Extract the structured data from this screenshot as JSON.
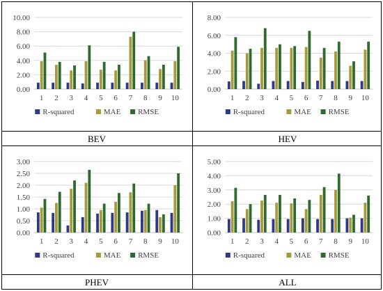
{
  "colors": {
    "r_squared": "#2E3A87",
    "mae": "#A89A3A",
    "rmse": "#2F6B2F"
  },
  "chart_data": [
    {
      "type": "bar",
      "title": "BEV",
      "categories": [
        "1",
        "2",
        "3",
        "4",
        "5",
        "6",
        "7",
        "8",
        "9",
        "10"
      ],
      "ylim": [
        0,
        10
      ],
      "yticks": [
        "0.00",
        "2.00",
        "4.00",
        "6.00",
        "8.00",
        "10.00"
      ],
      "tick_values": [
        0,
        2,
        4,
        6,
        8,
        10
      ],
      "series": [
        {
          "name": "R-squared",
          "values": [
            0.9,
            0.9,
            0.9,
            0.8,
            0.9,
            0.9,
            0.9,
            0.9,
            0.9,
            0.9
          ]
        },
        {
          "name": "MAE",
          "values": [
            3.9,
            3.4,
            2.6,
            3.9,
            2.7,
            2.6,
            7.3,
            4.0,
            2.8,
            3.9
          ]
        },
        {
          "name": "RMSE",
          "values": [
            5.1,
            3.8,
            3.3,
            6.1,
            3.8,
            3.4,
            8.0,
            4.6,
            3.4,
            5.9
          ]
        }
      ]
    },
    {
      "type": "bar",
      "title": "HEV",
      "categories": [
        "1",
        "2",
        "3",
        "4",
        "5",
        "6",
        "7",
        "8",
        "9",
        "10"
      ],
      "ylim": [
        0,
        8
      ],
      "yticks": [
        "0.00",
        "2.00",
        "4.00",
        "6.00",
        "8.00"
      ],
      "tick_values": [
        0,
        2,
        4,
        6,
        8
      ],
      "series": [
        {
          "name": "R-squared",
          "values": [
            0.85,
            0.9,
            0.6,
            0.9,
            0.9,
            0.8,
            0.95,
            0.9,
            0.9,
            0.9
          ]
        },
        {
          "name": "MAE",
          "values": [
            4.3,
            4.0,
            4.6,
            4.6,
            4.6,
            4.7,
            3.5,
            4.2,
            2.6,
            4.4
          ]
        },
        {
          "name": "RMSE",
          "values": [
            5.8,
            4.5,
            6.8,
            5.0,
            4.8,
            6.5,
            4.6,
            5.3,
            3.1,
            5.3
          ]
        }
      ]
    },
    {
      "type": "bar",
      "title": "PHEV",
      "categories": [
        "1",
        "2",
        "3",
        "4",
        "5",
        "6",
        "7",
        "8",
        "9",
        "10"
      ],
      "ylim": [
        0,
        3
      ],
      "yticks": [
        "0.00",
        "0.50",
        "1.00",
        "1.50",
        "2.00",
        "2.50",
        "3.00"
      ],
      "tick_values": [
        0,
        0.5,
        1,
        1.5,
        2,
        2.5,
        3
      ],
      "series": [
        {
          "name": "R-squared",
          "values": [
            0.85,
            0.83,
            0.3,
            0.65,
            0.8,
            0.83,
            0.85,
            0.92,
            0.95,
            0.83
          ]
        },
        {
          "name": "MAE",
          "values": [
            1.05,
            1.25,
            1.85,
            2.1,
            0.95,
            1.3,
            1.7,
            0.95,
            0.65,
            2.0
          ]
        },
        {
          "name": "RMSE",
          "values": [
            1.42,
            1.72,
            2.2,
            2.65,
            1.22,
            1.67,
            2.07,
            1.22,
            0.77,
            2.5
          ]
        }
      ]
    },
    {
      "type": "bar",
      "title": "ALL",
      "categories": [
        "1",
        "2",
        "3",
        "4",
        "5",
        "6",
        "7",
        "8",
        "9",
        "10"
      ],
      "ylim": [
        0,
        5
      ],
      "yticks": [
        "0.00",
        "1.00",
        "2.00",
        "3.00",
        "4.00",
        "5.00"
      ],
      "tick_values": [
        0,
        1,
        2,
        3,
        4,
        5
      ],
      "series": [
        {
          "name": "R-squared",
          "values": [
            0.95,
            1.0,
            0.9,
            0.95,
            0.95,
            1.0,
            0.95,
            0.95,
            1.0,
            1.0
          ]
        },
        {
          "name": "MAE",
          "values": [
            2.2,
            1.65,
            2.25,
            2.1,
            2.05,
            1.65,
            2.65,
            3.0,
            1.05,
            2.1
          ]
        },
        {
          "name": "RMSE",
          "values": [
            3.15,
            2.0,
            2.65,
            2.65,
            2.4,
            2.3,
            3.2,
            4.15,
            1.25,
            2.6
          ]
        }
      ]
    }
  ]
}
